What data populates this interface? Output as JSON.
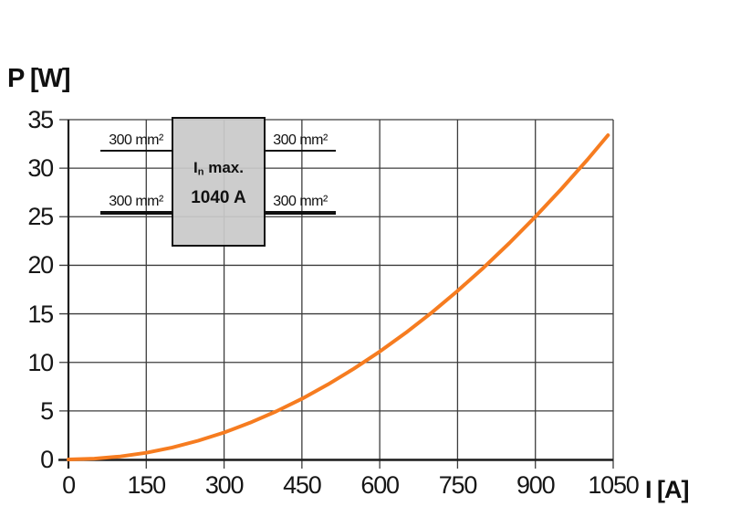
{
  "colors": {
    "curve": "#F67C20",
    "grid": "#3D3D3D",
    "axis": "#1E1E1E",
    "inset_fill": "#C9C9C9",
    "text": "#111111",
    "background": "#FFFFFF"
  },
  "axes": {
    "y_title": "P [W]",
    "x_title": "I [A]",
    "x_ticks": [
      "0",
      "150",
      "300",
      "450",
      "600",
      "750",
      "900",
      "1050"
    ],
    "y_ticks": [
      "0",
      "5",
      "10",
      "15",
      "20",
      "25",
      "30",
      "35"
    ]
  },
  "chart_data": {
    "type": "line",
    "title": "",
    "xlabel": "I [A]",
    "ylabel": "P [W]",
    "xlim": [
      0,
      1050
    ],
    "ylim": [
      0,
      35
    ],
    "x_tick_step": 150,
    "y_tick_step": 5,
    "grid": true,
    "legend": "none",
    "series": [
      {
        "name": "power-dissipation",
        "color": "#F67C20",
        "x": [
          0,
          50,
          100,
          150,
          200,
          250,
          300,
          350,
          400,
          450,
          500,
          550,
          600,
          650,
          700,
          750,
          800,
          850,
          900,
          950,
          1000,
          1040
        ],
        "y": [
          0,
          0.08,
          0.31,
          0.69,
          1.23,
          1.93,
          2.78,
          3.78,
          4.94,
          6.25,
          7.72,
          9.34,
          11.11,
          13.04,
          15.12,
          17.36,
          19.75,
          22.3,
          25.0,
          27.85,
          30.86,
          33.4
        ]
      }
    ],
    "annotation": {
      "device_label": "In max.",
      "device_rating": "1040 A",
      "conductor_labels": [
        "300 mm²",
        "300 mm²",
        "300 mm²",
        "300 mm²"
      ]
    }
  },
  "inset": {
    "label_prefix": "I",
    "label_subscript": "n",
    "label_suffix": " max.",
    "rating": "1040 A",
    "wires": [
      {
        "label": "300 mm²",
        "position": "top-left"
      },
      {
        "label": "300 mm²",
        "position": "top-right"
      },
      {
        "label": "300 mm²",
        "position": "bottom-left"
      },
      {
        "label": "300 mm²",
        "position": "bottom-right"
      }
    ]
  }
}
